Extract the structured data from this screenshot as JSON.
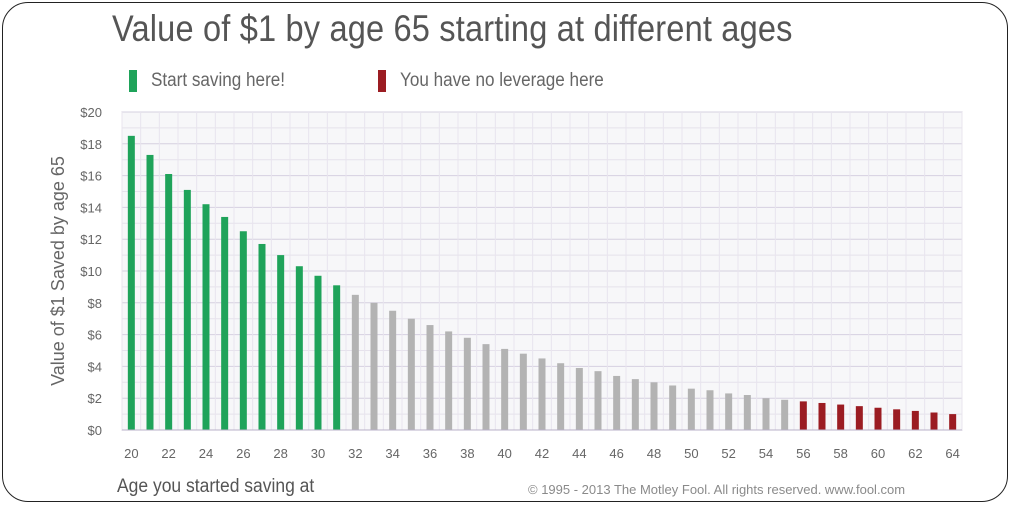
{
  "chart_data": {
    "type": "bar",
    "title": "Value of $1 by age 65 starting at different ages",
    "xlabel": "Age you started saving at",
    "ylabel": "Value of $1 Saved by age 65",
    "ylim": [
      0,
      20
    ],
    "yticks": [
      "$0",
      "$2",
      "$4",
      "$6",
      "$8",
      "$10",
      "$12",
      "$14",
      "$16",
      "$18",
      "$20"
    ],
    "grid": true,
    "categories": [
      20,
      21,
      22,
      23,
      24,
      25,
      26,
      27,
      28,
      29,
      30,
      31,
      32,
      33,
      34,
      35,
      36,
      37,
      38,
      39,
      40,
      41,
      42,
      43,
      44,
      45,
      46,
      47,
      48,
      49,
      50,
      51,
      52,
      53,
      54,
      55,
      56,
      57,
      58,
      59,
      60,
      61,
      62,
      63,
      64
    ],
    "xtick_labels": [
      "20",
      "22",
      "24",
      "26",
      "28",
      "30",
      "32",
      "34",
      "36",
      "38",
      "40",
      "42",
      "44",
      "46",
      "48",
      "50",
      "52",
      "54",
      "56",
      "58",
      "60",
      "62",
      "64"
    ],
    "values": [
      18.5,
      17.3,
      16.1,
      15.1,
      14.2,
      13.4,
      12.5,
      11.7,
      11.0,
      10.3,
      9.7,
      9.1,
      8.5,
      8.0,
      7.5,
      7.0,
      6.6,
      6.2,
      5.8,
      5.4,
      5.1,
      4.8,
      4.5,
      4.2,
      3.9,
      3.7,
      3.4,
      3.2,
      3.0,
      2.8,
      2.6,
      2.5,
      2.3,
      2.2,
      2.0,
      1.9,
      1.8,
      1.7,
      1.6,
      1.5,
      1.4,
      1.3,
      1.2,
      1.1,
      1.0
    ],
    "legend": [
      {
        "label": "Start saving here!",
        "color": "#1fa35a"
      },
      {
        "label": "You have no leverage here",
        "color": "#9b1c22"
      }
    ],
    "colors": {
      "green": "#1fa35a",
      "gray": "#b3b3b3",
      "red": "#9b1c22"
    },
    "green_ages": [
      20,
      31
    ],
    "red_ages": [
      56,
      64
    ]
  },
  "footer": {
    "copyright": "© 1995 - 2013 The Motley Fool. All rights reserved. www.fool.com"
  }
}
